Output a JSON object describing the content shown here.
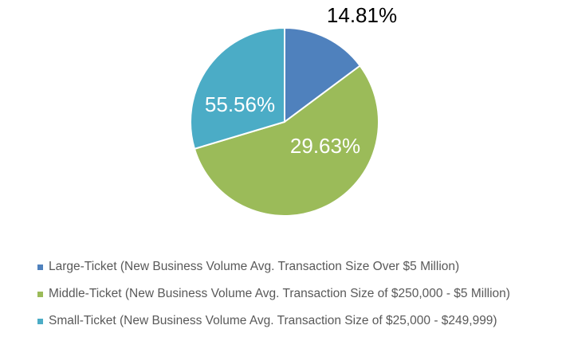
{
  "chart_data": {
    "type": "pie",
    "title": "",
    "start_angle": "top, clockwise",
    "slices": [
      {
        "label": "Large-Ticket (New Business Volume Avg. Transaction Size Over $5 Million)",
        "value": 14.81,
        "data_label": "14.81%",
        "color": "#4F81BD",
        "label_color": "#000000"
      },
      {
        "label": "Middle-Ticket (New Business Volume Avg. Transaction Size of $250,000 - $5 Million)",
        "value": 55.56,
        "data_label": "55.56%",
        "color": "#9BBB59",
        "label_color": "#FFFFFF"
      },
      {
        "label": "Small-Ticket (New Business Volume Avg. Transaction Size of $25,000 - $249,999)",
        "value": 29.63,
        "data_label": "29.63%",
        "color": "#4BACC6",
        "label_color": "#FFFFFF"
      }
    ],
    "legend_position": "bottom"
  }
}
